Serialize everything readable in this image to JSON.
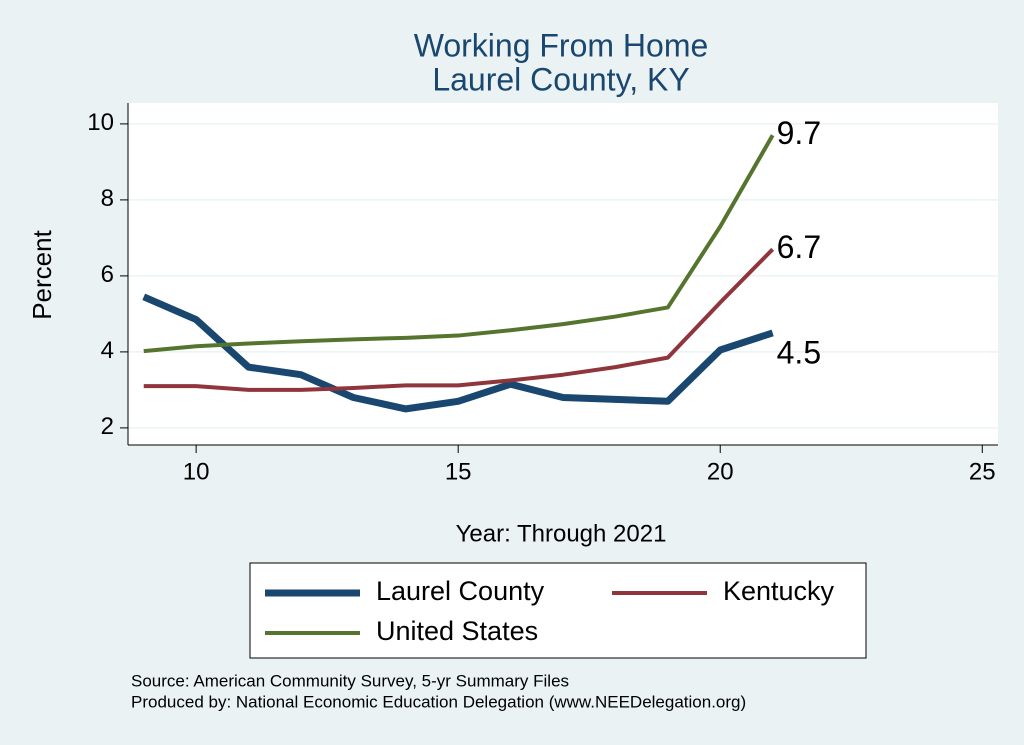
{
  "chart_data": {
    "type": "line",
    "title": [
      "Working From Home",
      "Laurel County, KY"
    ],
    "x_label": "Year: Through 2021",
    "y_label": "Percent",
    "x": [
      9,
      10,
      11,
      12,
      13,
      14,
      15,
      16,
      17,
      18,
      19,
      20,
      21
    ],
    "series": [
      {
        "name": "Laurel County",
        "color": "#1a476f",
        "values": [
          5.45,
          4.85,
          3.6,
          3.4,
          2.8,
          2.5,
          2.7,
          3.15,
          2.8,
          2.75,
          2.7,
          4.05,
          4.5
        ]
      },
      {
        "name": "Kentucky",
        "color": "#90353b",
        "values": [
          3.1,
          3.1,
          3.0,
          3.0,
          3.05,
          3.12,
          3.12,
          3.25,
          3.4,
          3.6,
          3.85,
          5.3,
          6.7
        ]
      },
      {
        "name": "United States",
        "color": "#55752f",
        "values": [
          4.02,
          4.15,
          4.22,
          4.28,
          4.33,
          4.37,
          4.43,
          4.57,
          4.73,
          4.93,
          5.17,
          7.3,
          9.7
        ]
      }
    ],
    "xlim": [
      8.7,
      25.3
    ],
    "xticks": [
      10,
      15,
      20,
      25
    ],
    "ylim": [
      1.55,
      10.55
    ],
    "yticks": [
      2,
      4,
      6,
      8,
      10
    ],
    "grid": true,
    "legend": "bottom",
    "notes": [
      "Source: American Community Survey, 5-yr Summary Files",
      "Produced by: National Economic Education Delegation (www.NEEDelegation.org)"
    ]
  }
}
